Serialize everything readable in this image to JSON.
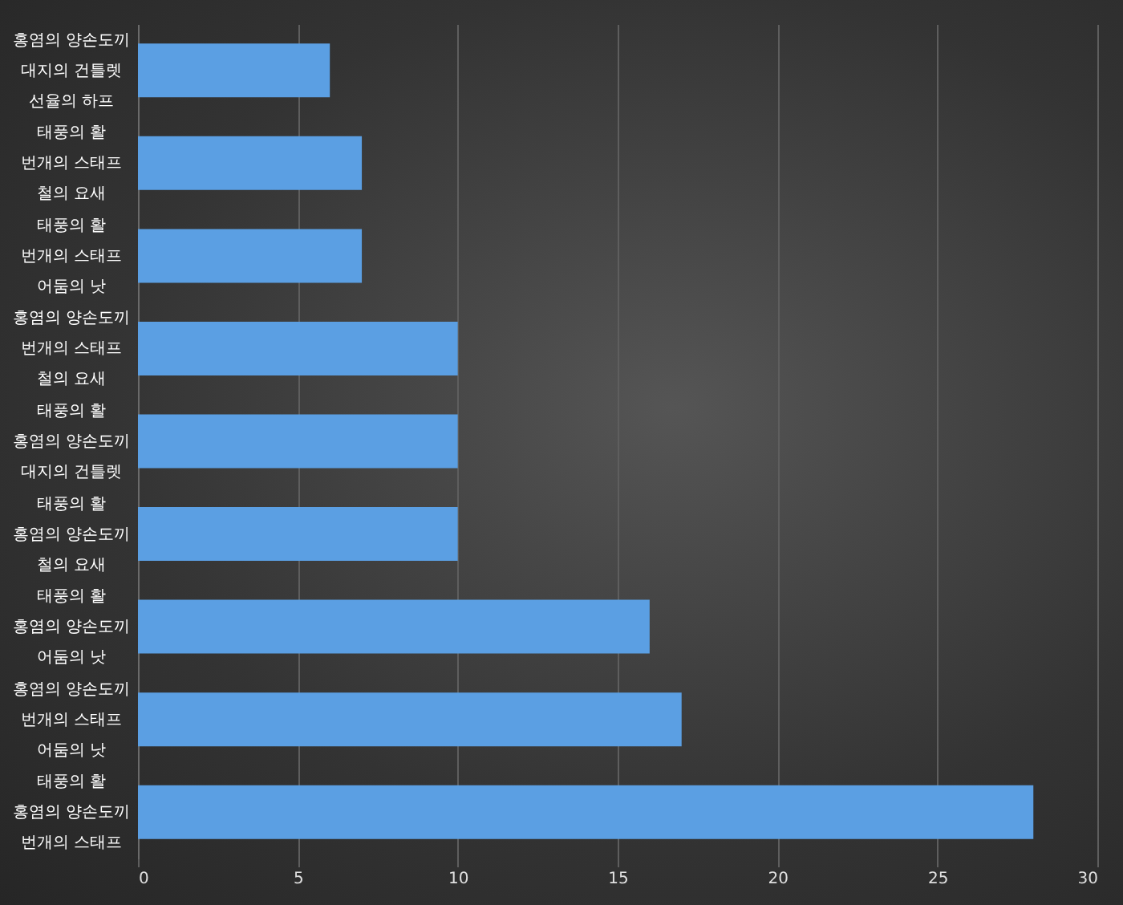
{
  "chart_data": {
    "type": "bar",
    "orientation": "horizontal",
    "categories": [
      "홍염의 양손도끼\n대지의 건틀렛\n선율의 하프",
      "태풍의 활\n번개의 스태프\n철의 요새",
      "태풍의 활\n번개의 스태프\n어둠의 낫",
      "홍염의 양손도끼\n번개의 스태프\n철의 요새",
      "태풍의 활\n홍염의 양손도끼\n대지의 건틀렛",
      "태풍의 활\n홍염의 양손도끼\n철의 요새",
      "태풍의 활\n홍염의 양손도끼\n어둠의 낫",
      "홍염의 양손도끼\n번개의 스태프\n어둠의 낫",
      "태풍의 활\n홍염의 양손도끼\n번개의 스태프"
    ],
    "values": [
      6,
      7,
      7,
      10,
      10,
      10,
      16,
      17,
      28
    ],
    "color": "#5b9fe3",
    "xlim": [
      0,
      30
    ],
    "xticks": [
      0,
      5,
      10,
      15,
      20,
      25,
      30
    ],
    "grid": "x"
  }
}
